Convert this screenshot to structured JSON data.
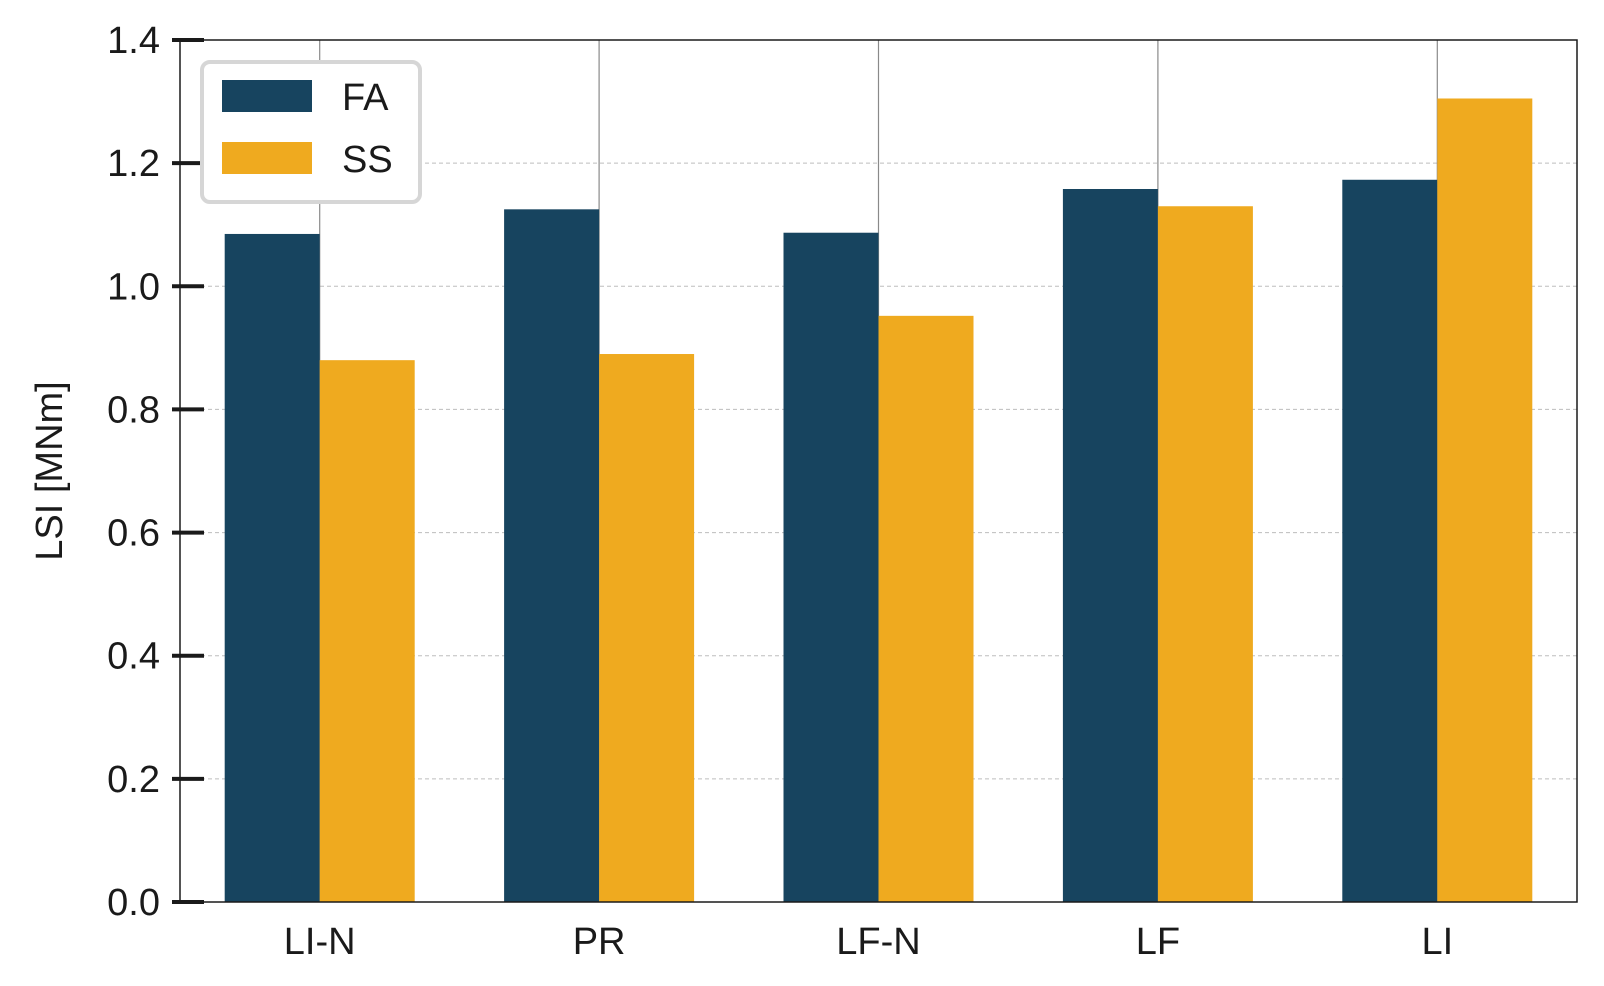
{
  "chart_data": {
    "type": "bar",
    "title": "",
    "xlabel": "",
    "ylabel": "LSI [MNm]",
    "categories": [
      "LI-N",
      "PR",
      "LF-N",
      "LF",
      "LI"
    ],
    "series": [
      {
        "name": "FA",
        "color": "#17445f",
        "values": [
          1.085,
          1.125,
          1.087,
          1.158,
          1.173
        ]
      },
      {
        "name": "SS",
        "color": "#efaa1f",
        "values": [
          0.88,
          0.89,
          0.952,
          1.13,
          1.305
        ]
      }
    ],
    "ylim": [
      0,
      1.4
    ],
    "yticks": [
      "0.0",
      "0.2",
      "0.4",
      "0.6",
      "0.8",
      "1.0",
      "1.2",
      "1.4"
    ],
    "grid": {
      "y": true,
      "x": true
    },
    "legend": {
      "placement": "top-left"
    }
  }
}
